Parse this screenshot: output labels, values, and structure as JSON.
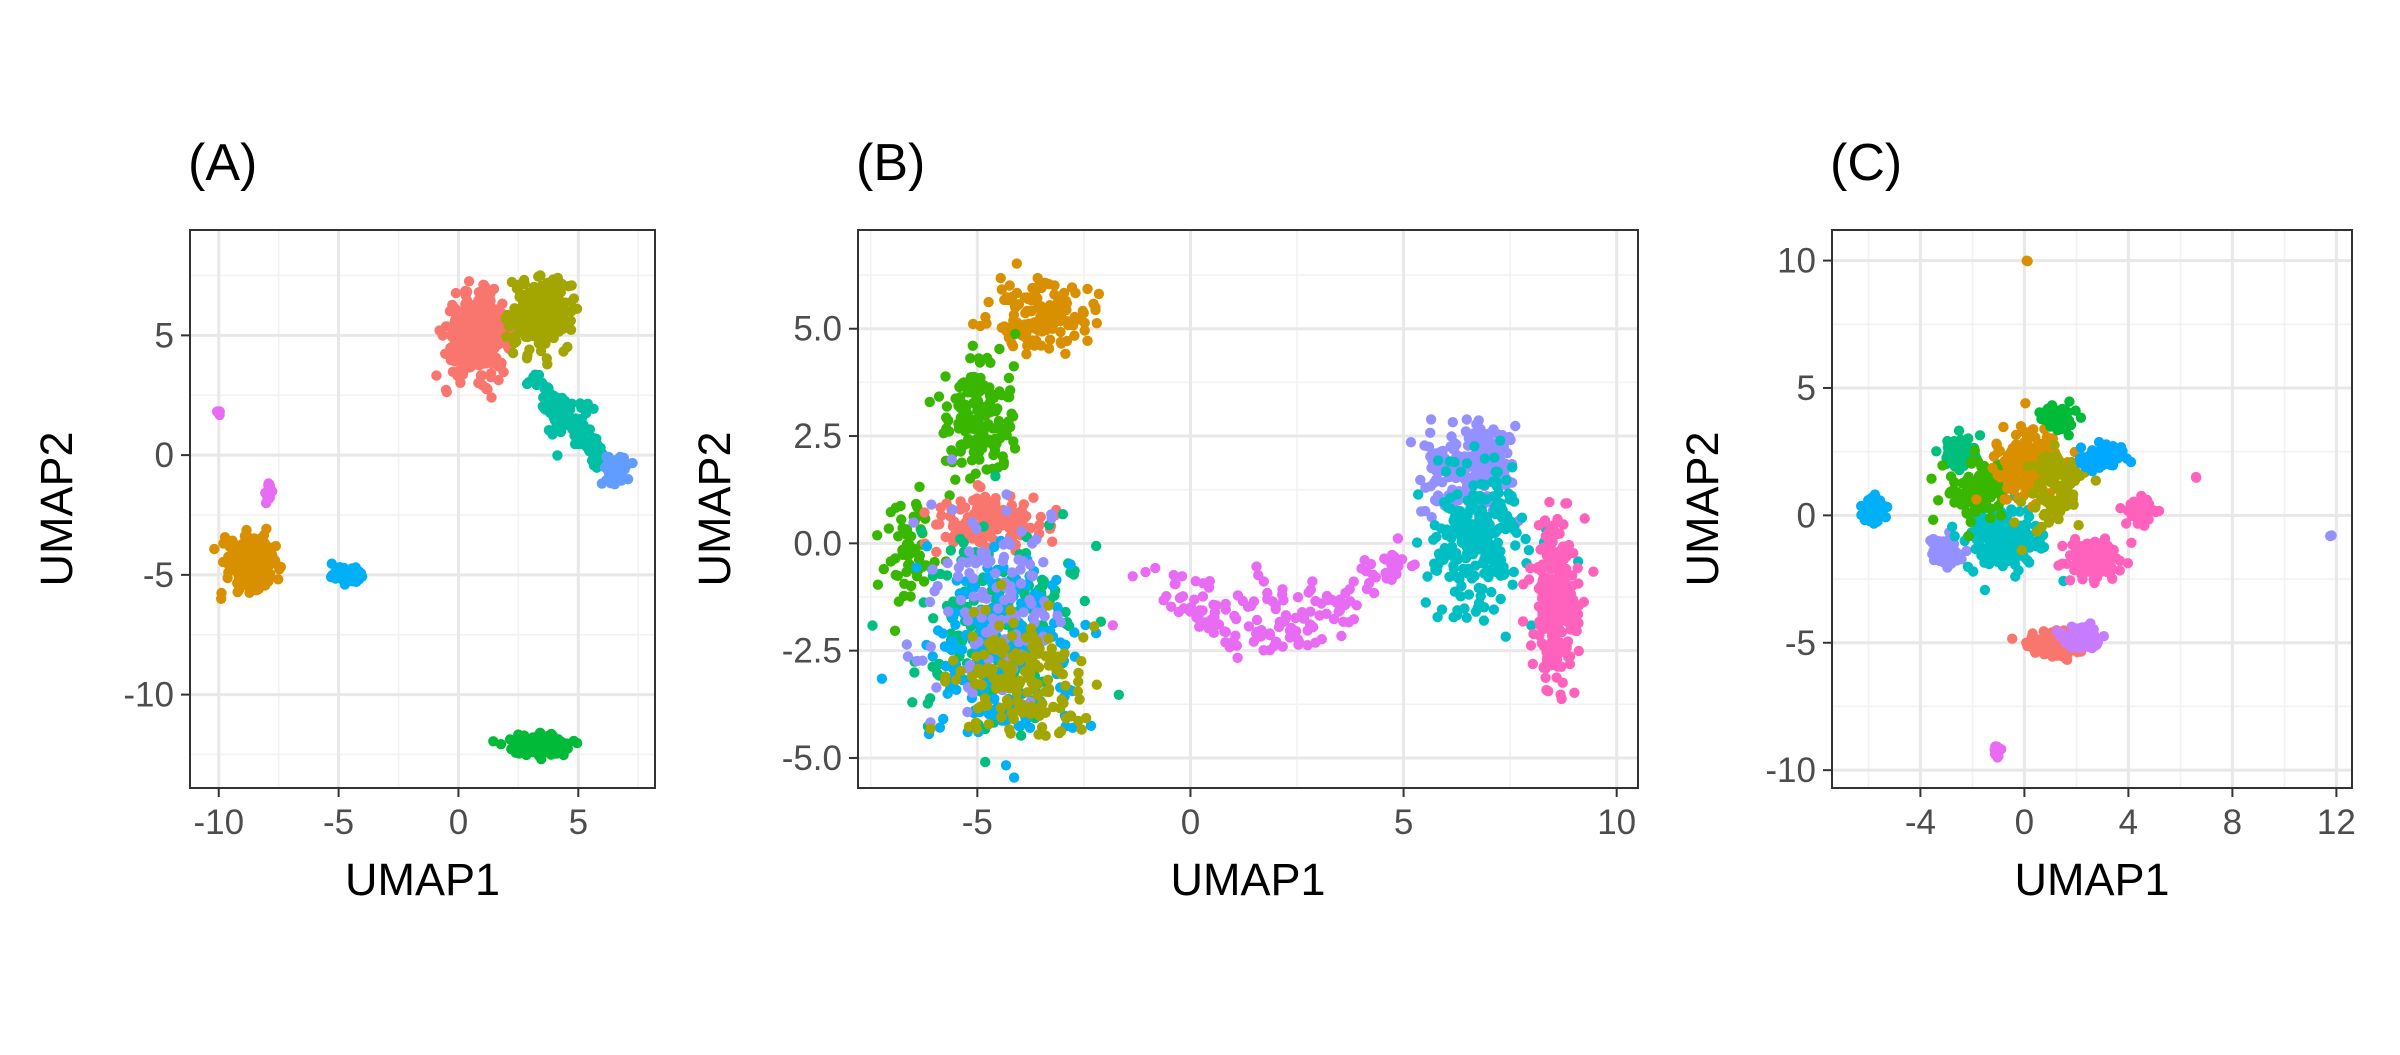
{
  "chart_data": [
    {
      "type": "scatter",
      "title": "(A)",
      "xlabel": "UMAP1",
      "ylabel": "UMAP2",
      "xlim": [
        -11.2,
        8.2
      ],
      "ylim": [
        -13.9,
        9.4
      ],
      "xticks": [
        -10,
        -5,
        0,
        5
      ],
      "yticks": [
        -10,
        -5,
        0,
        5
      ],
      "xtick_labels": [
        "-10",
        "-5",
        "0",
        "5"
      ],
      "ytick_labels": [
        "-10",
        "-5",
        "0",
        "5"
      ],
      "grid": true,
      "legend": "none",
      "clusters": [
        {
          "color": "#F8766D",
          "center": [
            0.8,
            5.0
          ],
          "spread": [
            1.2,
            1.5
          ],
          "n": 340
        },
        {
          "color": "#A3A500",
          "center": [
            3.4,
            5.9
          ],
          "spread": [
            1.1,
            1.3
          ],
          "n": 240
        },
        {
          "color": "#00BFA4",
          "center": [
            4.6,
            1.6
          ],
          "spread": [
            1.0,
            1.0
          ],
          "n": 130,
          "trail": [
            [
              3.0,
              3.4
            ],
            [
              6.2,
              -0.4
            ]
          ]
        },
        {
          "color": "#619CFF",
          "center": [
            6.6,
            -0.6
          ],
          "spread": [
            0.45,
            0.45
          ],
          "n": 70
        },
        {
          "color": "#D89000",
          "center": [
            -8.7,
            -4.5
          ],
          "spread": [
            0.9,
            1.0
          ],
          "n": 230
        },
        {
          "color": "#00B0F6",
          "center": [
            -4.6,
            -5.0
          ],
          "spread": [
            0.6,
            0.35
          ],
          "n": 80
        },
        {
          "color": "#E76BF3",
          "center": [
            -7.9,
            -1.6
          ],
          "spread": [
            0.15,
            0.45
          ],
          "n": 18
        },
        {
          "color": "#E76BF3",
          "center": [
            -10.0,
            1.8
          ],
          "spread": [
            0.12,
            0.12
          ],
          "n": 5
        },
        {
          "color": "#00BA38",
          "center": [
            3.4,
            -12.1
          ],
          "spread": [
            1.1,
            0.4
          ],
          "n": 170
        }
      ]
    },
    {
      "type": "scatter",
      "title": "(B)",
      "xlabel": "UMAP1",
      "ylabel": "UMAP2",
      "xlim": [
        -7.8,
        10.5
      ],
      "ylim": [
        -5.7,
        7.3
      ],
      "xticks": [
        -5,
        0,
        5,
        10
      ],
      "yticks": [
        -5.0,
        -2.5,
        0.0,
        2.5,
        5.0
      ],
      "xtick_labels": [
        "-5",
        "0",
        "5",
        "10"
      ],
      "ytick_labels": [
        "-5.0",
        "-2.5",
        "0.0",
        "2.5",
        "5.0"
      ],
      "grid": true,
      "legend": "none",
      "clusters": [
        {
          "color": "#D89000",
          "center": [
            -3.5,
            5.3
          ],
          "spread": [
            1.0,
            0.7
          ],
          "n": 150
        },
        {
          "color": "#39B600",
          "center": [
            -5.0,
            3.0
          ],
          "spread": [
            0.8,
            1.4
          ],
          "n": 160
        },
        {
          "color": "#39B600",
          "center": [
            -6.6,
            -0.2
          ],
          "spread": [
            0.5,
            1.2
          ],
          "n": 60
        },
        {
          "color": "#F8766D",
          "center": [
            -4.6,
            0.5
          ],
          "spread": [
            1.2,
            0.6
          ],
          "n": 150
        },
        {
          "color": "#00BF7D",
          "center": [
            -4.5,
            -2.0
          ],
          "spread": [
            1.6,
            2.0
          ],
          "n": 220
        },
        {
          "color": "#00B0F6",
          "center": [
            -4.4,
            -2.5
          ],
          "spread": [
            1.5,
            1.9
          ],
          "n": 220
        },
        {
          "color": "#9590FF",
          "center": [
            -4.6,
            -1.5
          ],
          "spread": [
            1.4,
            2.2
          ],
          "n": 120
        },
        {
          "color": "#A3A500",
          "center": [
            -4.0,
            -3.2
          ],
          "spread": [
            1.4,
            1.4
          ],
          "n": 160
        },
        {
          "color": "#E76BF3",
          "center": [
            1.8,
            -1.4
          ],
          "spread": [
            2.2,
            0.6
          ],
          "n": 170,
          "trail": [
            [
              -1.2,
              -0.5
            ],
            [
              1.2,
              -2.4
            ],
            [
              3.0,
              -2.0
            ],
            [
              5.0,
              -0.2
            ]
          ]
        },
        {
          "color": "#9590FF",
          "center": [
            6.6,
            1.8
          ],
          "spread": [
            0.9,
            0.9
          ],
          "n": 200
        },
        {
          "color": "#00BFC4",
          "center": [
            6.8,
            0.0
          ],
          "spread": [
            1.0,
            1.6
          ],
          "n": 240
        },
        {
          "color": "#FF62BC",
          "center": [
            8.6,
            -1.5
          ],
          "spread": [
            0.5,
            1.7
          ],
          "n": 240
        }
      ]
    },
    {
      "type": "scatter",
      "title": "(C)",
      "xlabel": "UMAP1",
      "ylabel": "UMAP2",
      "xlim": [
        -7.4,
        12.6
      ],
      "ylim": [
        -10.7,
        11.2
      ],
      "xticks": [
        -4,
        0,
        4,
        8,
        12
      ],
      "yticks": [
        -10,
        -5,
        0,
        5,
        10
      ],
      "xtick_labels": [
        "-4",
        "0",
        "4",
        "8",
        "12"
      ],
      "ytick_labels": [
        "-10",
        "-5",
        "0",
        "5",
        "10"
      ],
      "grid": true,
      "legend": "none",
      "clusters": [
        {
          "color": "#00BF7D",
          "center": [
            -2.5,
            2.5
          ],
          "spread": [
            0.6,
            0.5
          ],
          "n": 110
        },
        {
          "color": "#00B0F6",
          "center": [
            -5.8,
            0.2
          ],
          "spread": [
            0.4,
            0.5
          ],
          "n": 60
        },
        {
          "color": "#9590FF",
          "center": [
            -3.0,
            -1.4
          ],
          "spread": [
            0.5,
            0.5
          ],
          "n": 70
        },
        {
          "color": "#00BFC4",
          "center": [
            -0.8,
            -1.0
          ],
          "spread": [
            1.3,
            1.2
          ],
          "n": 180
        },
        {
          "color": "#39B600",
          "center": [
            -1.8,
            1.0
          ],
          "spread": [
            1.1,
            1.0
          ],
          "n": 140
        },
        {
          "color": "#D89000",
          "center": [
            0.2,
            2.0
          ],
          "spread": [
            1.1,
            1.3
          ],
          "n": 160
        },
        {
          "color": "#A3A500",
          "center": [
            1.1,
            1.0
          ],
          "spread": [
            1.0,
            1.5
          ],
          "n": 110
        },
        {
          "color": "#00BA38",
          "center": [
            1.3,
            3.8
          ],
          "spread": [
            0.6,
            0.5
          ],
          "n": 60
        },
        {
          "color": "#F8766D",
          "center": [
            1.2,
            -5.0
          ],
          "spread": [
            0.9,
            0.5
          ],
          "n": 110
        },
        {
          "color": "#C77CFF",
          "center": [
            2.3,
            -4.8
          ],
          "spread": [
            0.7,
            0.5
          ],
          "n": 70
        },
        {
          "color": "#FF62BC",
          "center": [
            2.6,
            -1.7
          ],
          "spread": [
            0.9,
            0.7
          ],
          "n": 100
        },
        {
          "color": "#FF62BC",
          "center": [
            4.4,
            0.2
          ],
          "spread": [
            0.6,
            0.4
          ],
          "n": 50
        },
        {
          "color": "#00A9FF",
          "center": [
            3.0,
            2.3
          ],
          "spread": [
            0.7,
            0.5
          ],
          "n": 80
        },
        {
          "color": "#E76BF3",
          "center": [
            -1.0,
            -9.3
          ],
          "spread": [
            0.18,
            0.25
          ],
          "n": 12
        },
        {
          "color": "#D89000",
          "center": [
            0.1,
            10.0
          ],
          "spread": [
            0.04,
            0.04
          ],
          "n": 2
        },
        {
          "color": "#9590FF",
          "center": [
            11.8,
            -0.8
          ],
          "spread": [
            0.05,
            0.05
          ],
          "n": 2
        },
        {
          "color": "#FF62BC",
          "center": [
            6.6,
            1.5
          ],
          "spread": [
            0.05,
            0.05
          ],
          "n": 2
        }
      ]
    }
  ]
}
